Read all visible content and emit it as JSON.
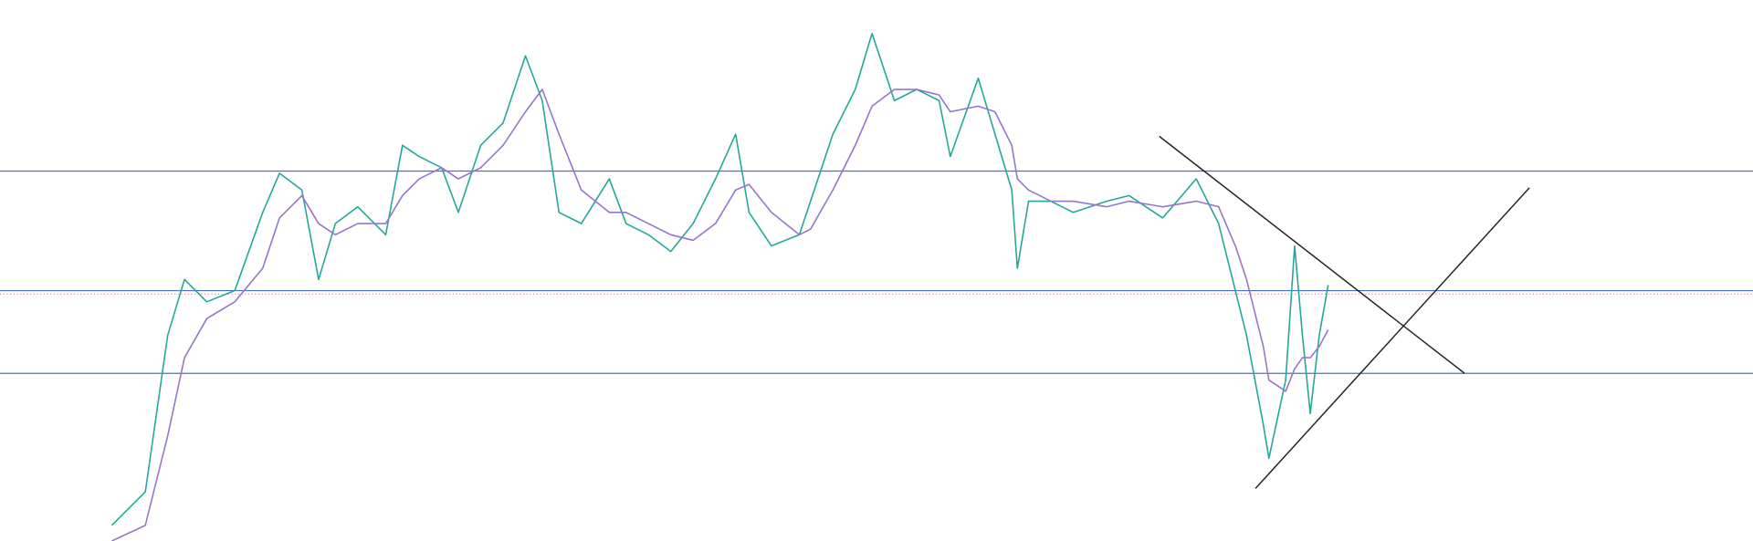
{
  "chart_data": {
    "type": "line",
    "xlim": [
      0,
      1568
    ],
    "ylim": [
      0,
      484
    ],
    "x": [
      100,
      130,
      150,
      165,
      185,
      210,
      235,
      250,
      270,
      285,
      300,
      320,
      345,
      360,
      375,
      395,
      410,
      430,
      450,
      470,
      485,
      500,
      520,
      545,
      560,
      580,
      600,
      620,
      640,
      658,
      670,
      690,
      715,
      725,
      745,
      765,
      780,
      800,
      820,
      840,
      850,
      875,
      890,
      905,
      910,
      920,
      940,
      960,
      990,
      1010,
      1040,
      1070,
      1090,
      1105,
      1115,
      1130,
      1135,
      1150,
      1158,
      1165,
      1172,
      1180,
      1188
    ],
    "series": [
      {
        "color": "#26a69a",
        "values": [
          14,
          44,
          184,
          234,
          214,
          224,
          294,
          329,
          314,
          234,
          284,
          299,
          274,
          354,
          344,
          334,
          294,
          354,
          374,
          434,
          394,
          294,
          284,
          324,
          284,
          274,
          259,
          284,
          324,
          364,
          294,
          264,
          274,
          304,
          364,
          404,
          454,
          394,
          404,
          394,
          344,
          414,
          364,
          314,
          244,
          304,
          304,
          294,
          304,
          309,
          289,
          324,
          284,
          224,
          184,
          104,
          74,
          144,
          264,
          184,
          114,
          184,
          229
        ]
      },
      {
        "color": "#9575cd",
        "values": [
          0,
          14,
          94,
          164,
          199,
          214,
          244,
          289,
          309,
          284,
          274,
          284,
          284,
          309,
          324,
          334,
          324,
          334,
          354,
          384,
          404,
          364,
          314,
          294,
          294,
          284,
          274,
          269,
          284,
          314,
          319,
          294,
          274,
          279,
          314,
          354,
          389,
          404,
          404,
          399,
          384,
          389,
          384,
          354,
          324,
          314,
          304,
          304,
          299,
          304,
          299,
          304,
          299,
          264,
          234,
          174,
          144,
          134,
          154,
          164,
          164,
          174,
          189
        ]
      }
    ],
    "levels": [
      331,
      224,
      150
    ],
    "last_price": 221,
    "trendlines": [
      {
        "x": [
          1037,
          1310
        ],
        "y": [
          362,
          150
        ]
      },
      {
        "x": [
          1123,
          1368
        ],
        "y": [
          47,
          316
        ]
      }
    ]
  }
}
